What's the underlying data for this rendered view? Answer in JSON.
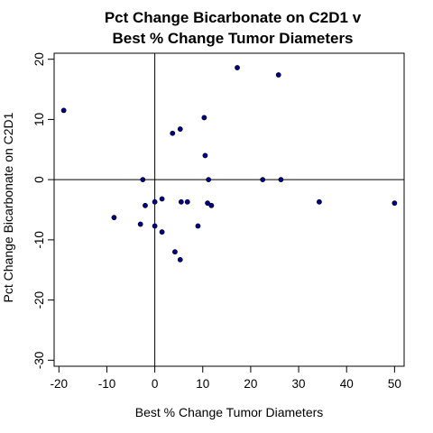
{
  "chart_data": {
    "type": "scatter",
    "title_lines": [
      "Pct Change Bicarbonate on C2D1 v",
      "Best % Change Tumor Diameters"
    ],
    "xlabel": "Best % Change Tumor Diameters",
    "ylabel": "Pct Change Bicarbonate on C2D1",
    "xlim": [
      -21,
      52
    ],
    "ylim": [
      -31,
      21
    ],
    "x_ticks": [
      -20,
      -10,
      0,
      10,
      20,
      30,
      40,
      50
    ],
    "y_ticks": [
      -30,
      -20,
      -10,
      0,
      10,
      20
    ],
    "reference_lines": {
      "x": 0,
      "y": 0
    },
    "point_color": "#00008B",
    "points": [
      {
        "x": -19.0,
        "y": 11.5
      },
      {
        "x": -8.5,
        "y": -6.3
      },
      {
        "x": -3.0,
        "y": -7.4
      },
      {
        "x": -2.5,
        "y": 0.0
      },
      {
        "x": -2.0,
        "y": -4.3
      },
      {
        "x": 0.0,
        "y": -3.7
      },
      {
        "x": 0.0,
        "y": -7.7
      },
      {
        "x": 1.5,
        "y": -3.2
      },
      {
        "x": 1.5,
        "y": -8.7
      },
      {
        "x": 3.7,
        "y": 7.7
      },
      {
        "x": 4.2,
        "y": -12.0
      },
      {
        "x": 5.3,
        "y": 8.4
      },
      {
        "x": 5.3,
        "y": -13.3
      },
      {
        "x": 5.5,
        "y": -3.7
      },
      {
        "x": 6.8,
        "y": -3.7
      },
      {
        "x": 9.0,
        "y": -7.7
      },
      {
        "x": 10.3,
        "y": 10.3
      },
      {
        "x": 10.5,
        "y": 4.0
      },
      {
        "x": 11.0,
        "y": -3.9
      },
      {
        "x": 11.2,
        "y": 0.0
      },
      {
        "x": 11.8,
        "y": -4.3
      },
      {
        "x": 17.2,
        "y": 18.6
      },
      {
        "x": 22.5,
        "y": 0.0
      },
      {
        "x": 25.8,
        "y": 17.4
      },
      {
        "x": 26.3,
        "y": 0.0
      },
      {
        "x": 34.3,
        "y": -3.7
      },
      {
        "x": 50.0,
        "y": -3.9
      }
    ]
  }
}
